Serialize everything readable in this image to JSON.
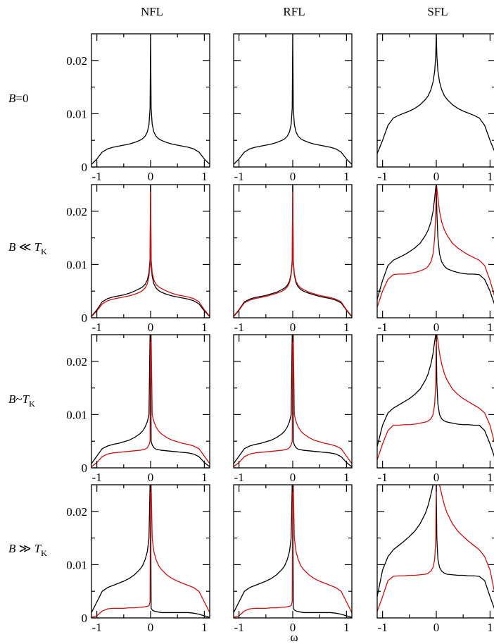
{
  "figure": {
    "columns": [
      "NFL",
      "RFL",
      "SFL"
    ],
    "rows": [
      {
        "prefix": "B",
        "op": "=0",
        "suffix": "",
        "sub": ""
      },
      {
        "prefix": "B",
        "op": " ≪ ",
        "suffix": "T",
        "sub": "K"
      },
      {
        "prefix": "B",
        "op": "~",
        "suffix": "T",
        "sub": "K"
      },
      {
        "prefix": "B",
        "op": " ≫ ",
        "suffix": "T",
        "sub": "K"
      }
    ],
    "xlabel": "ω",
    "x_ticks": [
      "-1",
      "0",
      "1"
    ],
    "y_ticks": [
      "0",
      "0.01",
      "0.02"
    ]
  },
  "colors": {
    "spin_up": "#000000",
    "spin_down": "#d01010"
  },
  "chart_data": {
    "type": "line",
    "grid": "3 columns x 4 rows of panels",
    "xlim": [
      -1.1,
      1.1
    ],
    "ylim": [
      0,
      0.025
    ],
    "x": [
      -1.1,
      -1.0,
      -0.9,
      -0.8,
      -0.7,
      -0.6,
      -0.5,
      -0.4,
      -0.3,
      -0.2,
      -0.15,
      -0.1,
      -0.06,
      -0.03,
      -0.01,
      0.0,
      0.01,
      0.03,
      0.06,
      0.1,
      0.15,
      0.2,
      0.3,
      0.4,
      0.5,
      0.6,
      0.7,
      0.8,
      0.9,
      1.0,
      1.1
    ],
    "panels": [
      {
        "row": 0,
        "col": "NFL",
        "series": [
          {
            "color": "#000000",
            "values": [
              0.0005,
              0.0015,
              0.0028,
              0.0034,
              0.0037,
              0.0039,
              0.0041,
              0.0043,
              0.0046,
              0.005,
              0.0053,
              0.0058,
              0.0066,
              0.008,
              0.011,
              0.025,
              0.011,
              0.008,
              0.0066,
              0.0058,
              0.0053,
              0.005,
              0.0046,
              0.0043,
              0.0041,
              0.0039,
              0.0037,
              0.0034,
              0.0028,
              0.0015,
              0.0005
            ]
          }
        ]
      },
      {
        "row": 0,
        "col": "RFL",
        "series": [
          {
            "color": "#000000",
            "values": [
              0.0005,
              0.0015,
              0.0028,
              0.0034,
              0.0037,
              0.0039,
              0.0041,
              0.0043,
              0.0046,
              0.005,
              0.0053,
              0.0058,
              0.0066,
              0.008,
              0.011,
              0.025,
              0.011,
              0.008,
              0.0066,
              0.0058,
              0.0053,
              0.005,
              0.0046,
              0.0043,
              0.0041,
              0.0039,
              0.0037,
              0.0034,
              0.0028,
              0.0015,
              0.0005
            ]
          }
        ]
      },
      {
        "row": 0,
        "col": "SFL",
        "series": [
          {
            "color": "#000000",
            "values": [
              0.0025,
              0.005,
              0.0078,
              0.0092,
              0.0097,
              0.0101,
              0.0105,
              0.011,
              0.0117,
              0.0127,
              0.0134,
              0.0145,
              0.016,
              0.018,
              0.021,
              0.025,
              0.021,
              0.018,
              0.016,
              0.0145,
              0.0134,
              0.0127,
              0.0117,
              0.011,
              0.0105,
              0.0101,
              0.0097,
              0.0092,
              0.0078,
              0.005,
              0.0025
            ]
          }
        ]
      },
      {
        "row": 1,
        "col": "NFL",
        "series": [
          {
            "color": "#000000",
            "values": [
              0.0003,
              0.0015,
              0.003,
              0.0036,
              0.0039,
              0.0041,
              0.0043,
              0.0046,
              0.005,
              0.0055,
              0.0058,
              0.0063,
              0.0071,
              0.0085,
              0.011,
              0.025,
              0.01,
              0.0078,
              0.0064,
              0.0056,
              0.0051,
              0.0048,
              0.0044,
              0.0041,
              0.0039,
              0.0037,
              0.0035,
              0.0032,
              0.0026,
              0.0013,
              0.0002
            ]
          },
          {
            "color": "#d01010",
            "values": [
              0.0002,
              0.0013,
              0.0026,
              0.0032,
              0.0035,
              0.0037,
              0.0039,
              0.0041,
              0.0044,
              0.0048,
              0.0051,
              0.0056,
              0.0064,
              0.0078,
              0.01,
              0.025,
              0.011,
              0.0085,
              0.0071,
              0.0063,
              0.0058,
              0.0055,
              0.005,
              0.0046,
              0.0043,
              0.0041,
              0.0039,
              0.0036,
              0.003,
              0.0015,
              0.0003
            ]
          }
        ]
      },
      {
        "row": 1,
        "col": "RFL",
        "series": [
          {
            "color": "#000000",
            "values": [
              0.0003,
              0.0015,
              0.003,
              0.0035,
              0.0038,
              0.004,
              0.0042,
              0.0045,
              0.0048,
              0.0053,
              0.0056,
              0.0061,
              0.0069,
              0.0083,
              0.0108,
              0.025,
              0.0102,
              0.008,
              0.0066,
              0.0058,
              0.0053,
              0.005,
              0.0046,
              0.0043,
              0.004,
              0.0038,
              0.0036,
              0.0033,
              0.0028,
              0.0014,
              0.0002
            ]
          },
          {
            "color": "#d01010",
            "values": [
              0.0002,
              0.0014,
              0.0028,
              0.0033,
              0.0036,
              0.0038,
              0.004,
              0.0043,
              0.0046,
              0.005,
              0.0053,
              0.0058,
              0.0066,
              0.008,
              0.0102,
              0.025,
              0.0108,
              0.0083,
              0.0069,
              0.0061,
              0.0056,
              0.0053,
              0.0048,
              0.0045,
              0.0042,
              0.004,
              0.0038,
              0.0035,
              0.003,
              0.0015,
              0.0003
            ]
          }
        ]
      },
      {
        "row": 1,
        "col": "SFL",
        "series": [
          {
            "color": "#000000",
            "values": [
              0.0035,
              0.007,
              0.0098,
              0.0108,
              0.0113,
              0.0118,
              0.0124,
              0.0131,
              0.014,
              0.0155,
              0.0165,
              0.018,
              0.02,
              0.0225,
              0.0245,
              0.025,
              0.02,
              0.015,
              0.012,
              0.0105,
              0.0097,
              0.0092,
              0.0088,
              0.0085,
              0.0083,
              0.0082,
              0.0082,
              0.0081,
              0.0072,
              0.005,
              0.002
            ]
          },
          {
            "color": "#d01010",
            "values": [
              0.002,
              0.005,
              0.0072,
              0.0081,
              0.0082,
              0.0082,
              0.0083,
              0.0085,
              0.0088,
              0.0092,
              0.0097,
              0.0105,
              0.012,
              0.015,
              0.02,
              0.025,
              0.0245,
              0.0225,
              0.02,
              0.018,
              0.0165,
              0.0155,
              0.014,
              0.0131,
              0.0124,
              0.0118,
              0.0113,
              0.0108,
              0.0098,
              0.007,
              0.0035
            ]
          }
        ]
      },
      {
        "row": 2,
        "col": "NFL",
        "series": [
          {
            "color": "#000000",
            "values": [
              0.0008,
              0.0022,
              0.0036,
              0.0041,
              0.0044,
              0.0046,
              0.0049,
              0.0052,
              0.0057,
              0.0064,
              0.0069,
              0.0077,
              0.0087,
              0.01,
              0.025,
              0.025,
              0.005,
              0.0043,
              0.0038,
              0.0035,
              0.0034,
              0.0033,
              0.0032,
              0.0031,
              0.003,
              0.0029,
              0.0028,
              0.0026,
              0.0021,
              0.001,
              0.0002
            ]
          },
          {
            "color": "#d01010",
            "values": [
              0.0002,
              0.001,
              0.0021,
              0.0026,
              0.0028,
              0.0029,
              0.003,
              0.0031,
              0.0032,
              0.0033,
              0.0034,
              0.0035,
              0.0038,
              0.0043,
              0.005,
              0.025,
              0.025,
              0.01,
              0.0087,
              0.0077,
              0.0069,
              0.0064,
              0.0057,
              0.0052,
              0.0049,
              0.0046,
              0.0044,
              0.0041,
              0.0036,
              0.0022,
              0.0008
            ]
          }
        ]
      },
      {
        "row": 2,
        "col": "RFL",
        "series": [
          {
            "color": "#000000",
            "values": [
              0.0008,
              0.0022,
              0.0036,
              0.0041,
              0.0044,
              0.0046,
              0.0049,
              0.0052,
              0.0057,
              0.0064,
              0.0069,
              0.0077,
              0.0087,
              0.01,
              0.025,
              0.025,
              0.005,
              0.0043,
              0.0038,
              0.0035,
              0.0034,
              0.0033,
              0.0032,
              0.0031,
              0.003,
              0.0029,
              0.0028,
              0.0026,
              0.0021,
              0.001,
              0.0002
            ]
          },
          {
            "color": "#d01010",
            "values": [
              0.0002,
              0.001,
              0.0021,
              0.0026,
              0.0028,
              0.0029,
              0.003,
              0.0031,
              0.0032,
              0.0033,
              0.0034,
              0.0035,
              0.0038,
              0.0043,
              0.005,
              0.025,
              0.025,
              0.01,
              0.0087,
              0.0077,
              0.0069,
              0.0064,
              0.0057,
              0.0052,
              0.0049,
              0.0046,
              0.0044,
              0.0041,
              0.0036,
              0.0022,
              0.0008
            ]
          }
        ]
      },
      {
        "row": 2,
        "col": "SFL",
        "series": [
          {
            "color": "#000000",
            "values": [
              0.004,
              0.008,
              0.0103,
              0.0112,
              0.0118,
              0.0124,
              0.013,
              0.0138,
              0.0148,
              0.0165,
              0.0177,
              0.0195,
              0.0215,
              0.0238,
              0.025,
              0.025,
              0.016,
              0.012,
              0.01,
              0.0092,
              0.0088,
              0.0086,
              0.0084,
              0.0082,
              0.0081,
              0.0081,
              0.008,
              0.008,
              0.007,
              0.0045,
              0.0015
            ]
          },
          {
            "color": "#d01010",
            "values": [
              0.0015,
              0.0045,
              0.007,
              0.008,
              0.008,
              0.0081,
              0.0081,
              0.0082,
              0.0084,
              0.0086,
              0.0088,
              0.0092,
              0.01,
              0.012,
              0.016,
              0.025,
              0.025,
              0.0238,
              0.0215,
              0.0195,
              0.0177,
              0.0165,
              0.0148,
              0.0138,
              0.013,
              0.0124,
              0.0118,
              0.0112,
              0.0103,
              0.008,
              0.004
            ]
          }
        ]
      },
      {
        "row": 3,
        "col": "NFL",
        "series": [
          {
            "color": "#000000",
            "values": [
              0.001,
              0.003,
              0.005,
              0.0057,
              0.0061,
              0.0065,
              0.0069,
              0.0074,
              0.0081,
              0.0091,
              0.0098,
              0.011,
              0.0125,
              0.015,
              0.025,
              0.025,
              0.0018,
              0.0015,
              0.0013,
              0.0012,
              0.0011,
              0.001,
              0.001,
              0.001,
              0.001,
              0.001,
              0.001,
              0.0009,
              0.0007,
              0.0004,
              0.0001
            ]
          },
          {
            "color": "#d01010",
            "values": [
              0.0001,
              0.0004,
              0.0013,
              0.0017,
              0.0018,
              0.0018,
              0.0018,
              0.0019,
              0.0019,
              0.002,
              0.002,
              0.0021,
              0.0022,
              0.0023,
              0.003,
              0.025,
              0.025,
              0.015,
              0.0125,
              0.011,
              0.0098,
              0.0091,
              0.0081,
              0.0074,
              0.0069,
              0.0065,
              0.0061,
              0.0057,
              0.005,
              0.003,
              0.001
            ]
          }
        ]
      },
      {
        "row": 3,
        "col": "RFL",
        "series": [
          {
            "color": "#000000",
            "values": [
              0.001,
              0.003,
              0.005,
              0.0057,
              0.0061,
              0.0065,
              0.0069,
              0.0074,
              0.0081,
              0.0091,
              0.0098,
              0.011,
              0.0125,
              0.015,
              0.025,
              0.025,
              0.0018,
              0.0015,
              0.0013,
              0.0012,
              0.0011,
              0.001,
              0.001,
              0.001,
              0.001,
              0.001,
              0.001,
              0.0009,
              0.0007,
              0.0004,
              0.0001
            ]
          },
          {
            "color": "#d01010",
            "values": [
              0.0001,
              0.0004,
              0.0013,
              0.0017,
              0.0018,
              0.0018,
              0.0018,
              0.0019,
              0.0019,
              0.002,
              0.002,
              0.0021,
              0.0022,
              0.0023,
              0.003,
              0.025,
              0.025,
              0.015,
              0.0125,
              0.011,
              0.0098,
              0.0091,
              0.0081,
              0.0074,
              0.0069,
              0.0065,
              0.0061,
              0.0057,
              0.005,
              0.003,
              0.001
            ]
          }
        ]
      },
      {
        "row": 3,
        "col": "SFL",
        "series": [
          {
            "color": "#000000",
            "values": [
              0.004,
              0.009,
              0.0115,
              0.0128,
              0.0136,
              0.0144,
              0.0153,
              0.0163,
              0.0177,
              0.0197,
              0.0212,
              0.0232,
              0.025,
              0.025,
              0.025,
              0.025,
              0.015,
              0.011,
              0.0095,
              0.0088,
              0.0084,
              0.0082,
              0.0081,
              0.008,
              0.008,
              0.0079,
              0.0079,
              0.0078,
              0.007,
              0.004,
              0.0012
            ]
          },
          {
            "color": "#d01010",
            "values": [
              0.0012,
              0.004,
              0.007,
              0.0078,
              0.0079,
              0.0079,
              0.008,
              0.008,
              0.0081,
              0.0082,
              0.0084,
              0.0088,
              0.0095,
              0.011,
              0.015,
              0.025,
              0.025,
              0.025,
              0.025,
              0.0232,
              0.0212,
              0.0197,
              0.0177,
              0.0163,
              0.0153,
              0.0144,
              0.0136,
              0.0128,
              0.0115,
              0.009,
              0.004
            ]
          }
        ]
      }
    ]
  }
}
